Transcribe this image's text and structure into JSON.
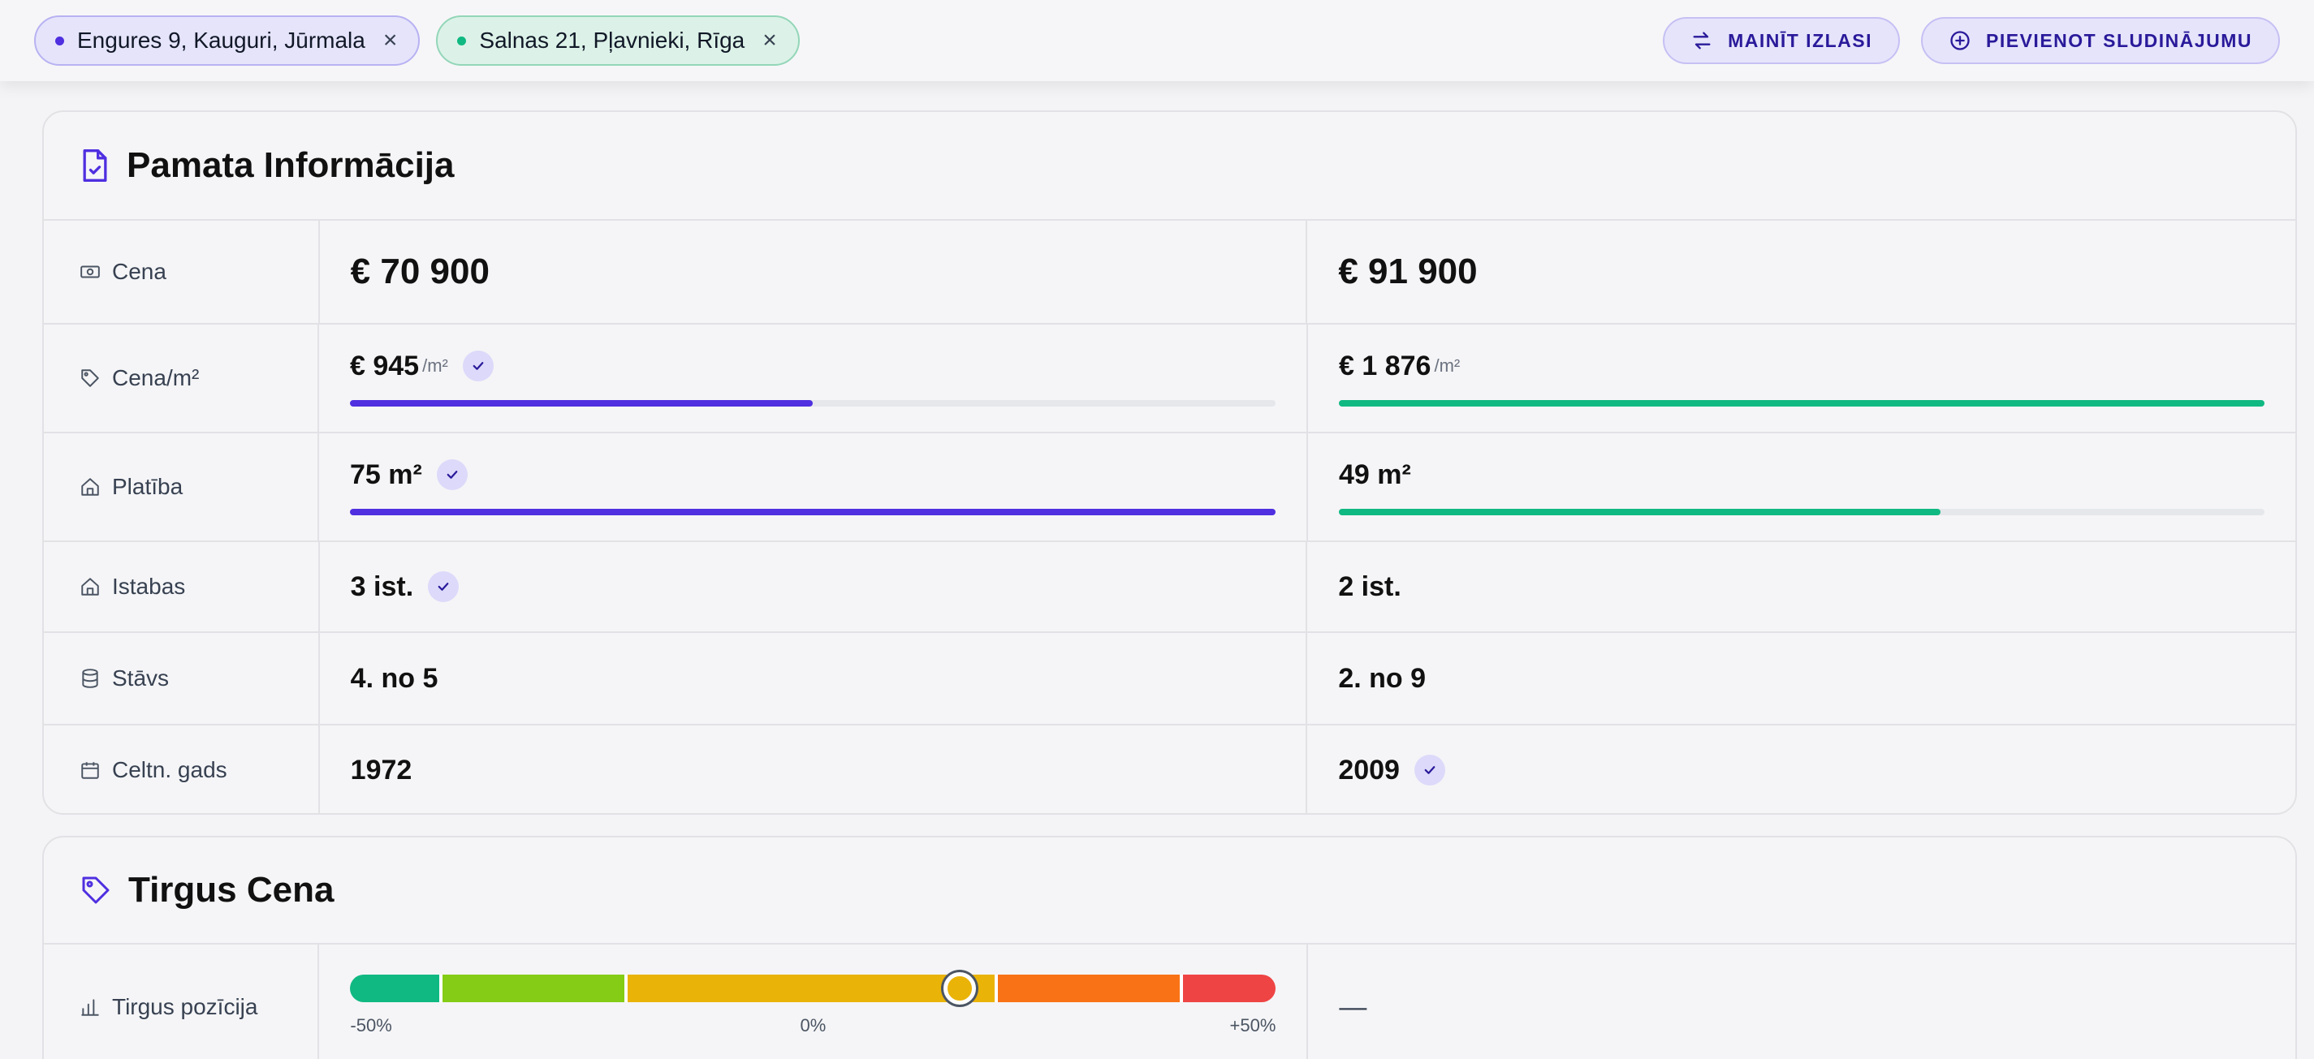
{
  "tabs": [
    {
      "label": "Engures 9, Kauguri, Jūrmala"
    },
    {
      "label": "Salnas 21, Pļavnieki, Rīga"
    }
  ],
  "actions": {
    "change": "MAINĪT IZLASI",
    "add": "PIEVIENOT SLUDINĀJUMU"
  },
  "basic": {
    "title": "Pamata Informācija",
    "rows": {
      "price": {
        "label": "Cena",
        "a": "€ 70 900",
        "b": "€ 91 900"
      },
      "ppsqm": {
        "label": "Cena/m²",
        "a": "€ 945",
        "b": "€ 1 876",
        "unit": "/m²",
        "a_fill": 0.5,
        "b_fill": 1.0,
        "winner": "a"
      },
      "area": {
        "label": "Platība",
        "a": "75 m²",
        "b": "49 m²",
        "a_fill": 1.0,
        "b_fill": 0.65,
        "winner": "a"
      },
      "rooms": {
        "label": "Istabas",
        "a": "3 ist.",
        "b": "2 ist.",
        "winner": "a"
      },
      "floor": {
        "label": "Stāvs",
        "a": "4. no 5",
        "b": "2. no 9"
      },
      "year": {
        "label": "Celtn. gads",
        "a": "1972",
        "b": "2009",
        "winner": "b"
      }
    }
  },
  "market": {
    "title": "Tirgus Cena",
    "row_label": "Tirgus pozīcija",
    "position_fraction": 0.658,
    "ticks": [
      "-50%",
      "0%",
      "+50%"
    ],
    "b": "—",
    "segments": [
      {
        "color": "#10b981",
        "share": 0.1
      },
      {
        "color": "#84cc16",
        "share": 0.2
      },
      {
        "color": "#eab308",
        "share": 0.4
      },
      {
        "color": "#f97316",
        "share": 0.2
      },
      {
        "color": "#ef4444",
        "share": 0.1
      }
    ]
  },
  "colors": {
    "accent": "#4f2fe0",
    "secondary": "#10b981"
  }
}
